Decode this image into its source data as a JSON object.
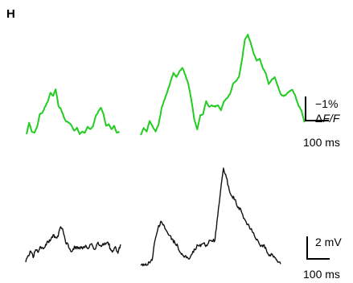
{
  "panel_label": "H",
  "colors": {
    "fluorescence": "#22cc22",
    "voltage": "#111111",
    "scalebar": "#000000"
  },
  "scalebars": {
    "fluorescence_amp": "−1%",
    "fluorescence_unit_delta": "Δ",
    "fluorescence_unit_F1": "F",
    "fluorescence_unit_slash": "/",
    "fluorescence_unit_F2": "F",
    "fluorescence_time": "100 ms",
    "voltage_amp": "2 mV",
    "voltage_time": "100 ms"
  },
  "chart_data": {
    "type": "line",
    "title": "",
    "xlabel": "",
    "ylabel": "",
    "grid": false,
    "series": [
      {
        "trace": "fluorescence",
        "segment": 1,
        "color": "#22cc22",
        "x": [
          0,
          10,
          20,
          30,
          40,
          50,
          60,
          70,
          80,
          90,
          100,
          110,
          120,
          130,
          140,
          150,
          160,
          170,
          180,
          190,
          200,
          210,
          220,
          230,
          240,
          250,
          260,
          270,
          280,
          290,
          300,
          310,
          320,
          330,
          340,
          350
        ],
        "y": [
          0.05,
          0.28,
          0.1,
          0.08,
          0.2,
          0.45,
          0.48,
          0.6,
          0.7,
          0.88,
          0.82,
          0.95,
          0.62,
          0.55,
          0.4,
          0.3,
          0.28,
          0.22,
          0.12,
          0.18,
          0.05,
          0.1,
          0.08,
          0.2,
          0.15,
          0.2,
          0.4,
          0.5,
          0.58,
          0.45,
          0.22,
          0.25,
          0.15,
          0.22,
          0.08,
          0.1
        ]
      },
      {
        "trace": "fluorescence",
        "segment": 2,
        "color": "#22cc22",
        "x": [
          0,
          10,
          20,
          30,
          40,
          50,
          60,
          70,
          80,
          90,
          100,
          110,
          120,
          130,
          140,
          150,
          160,
          170,
          180,
          190,
          200,
          210,
          220,
          230,
          240,
          250,
          260,
          270,
          280,
          290,
          300,
          310,
          320,
          330,
          340,
          350,
          360,
          370,
          380,
          390,
          400,
          410,
          420,
          430,
          440,
          450,
          460,
          470,
          480,
          490,
          500,
          510,
          520,
          530,
          540,
          550
        ],
        "y": [
          0.0,
          0.1,
          0.05,
          0.2,
          0.12,
          0.05,
          0.15,
          0.38,
          0.5,
          0.62,
          0.75,
          0.88,
          0.82,
          0.9,
          0.95,
          0.85,
          0.72,
          0.5,
          0.22,
          0.08,
          0.28,
          0.3,
          0.48,
          0.4,
          0.42,
          0.4,
          0.42,
          0.35,
          0.48,
          0.52,
          0.58,
          0.72,
          0.76,
          0.82,
          1.05,
          1.35,
          1.42,
          1.3,
          1.15,
          1.05,
          1.08,
          0.95,
          0.88,
          0.72,
          0.78,
          0.82,
          0.7,
          0.58,
          0.55,
          0.58,
          0.62,
          0.64,
          0.55,
          0.42,
          0.35,
          0.18
        ]
      },
      {
        "trace": "voltage",
        "segment": 1,
        "color": "#111111",
        "x": [
          0,
          10,
          20,
          30,
          40,
          50,
          60,
          70,
          80,
          90,
          100,
          110,
          120,
          130,
          140,
          150,
          160,
          170,
          180,
          190,
          200,
          210,
          220,
          230,
          240,
          250,
          260,
          270,
          280,
          290,
          300,
          310,
          320,
          330,
          340,
          350,
          360,
          370,
          380
        ],
        "y": [
          0.0,
          0.15,
          0.25,
          0.1,
          0.28,
          0.22,
          0.35,
          0.3,
          0.4,
          0.45,
          0.5,
          0.62,
          0.55,
          0.58,
          0.8,
          0.7,
          0.45,
          0.4,
          0.25,
          0.3,
          0.35,
          0.3,
          0.35,
          0.32,
          0.38,
          0.3,
          0.4,
          0.35,
          0.3,
          0.45,
          0.38,
          0.42,
          0.4,
          0.45,
          0.3,
          0.25,
          0.35,
          0.2,
          0.4
        ]
      },
      {
        "trace": "voltage",
        "segment": 2,
        "color": "#111111",
        "x": [
          0,
          10,
          20,
          30,
          40,
          50,
          60,
          70,
          80,
          90,
          100,
          110,
          120,
          130,
          140,
          150,
          160,
          170,
          180,
          190,
          200,
          210,
          220,
          230,
          240,
          250,
          260,
          270,
          280,
          290,
          300,
          310,
          320,
          330,
          340,
          350,
          360,
          370,
          380,
          390,
          400,
          410,
          420,
          430,
          440,
          450,
          460,
          470,
          480,
          490
        ],
        "y": [
          0.0,
          0.02,
          0.0,
          0.05,
          0.08,
          0.4,
          0.58,
          0.7,
          0.65,
          0.55,
          0.48,
          0.42,
          0.35,
          0.3,
          0.2,
          0.15,
          0.12,
          0.1,
          0.18,
          0.25,
          0.32,
          0.3,
          0.35,
          0.32,
          0.4,
          0.38,
          0.4,
          0.8,
          1.2,
          1.55,
          1.4,
          1.2,
          1.1,
          1.05,
          0.92,
          0.9,
          0.75,
          0.68,
          0.62,
          0.55,
          0.45,
          0.4,
          0.3,
          0.32,
          0.25,
          0.15,
          0.18,
          0.12,
          0.05,
          0.02
        ]
      }
    ]
  }
}
